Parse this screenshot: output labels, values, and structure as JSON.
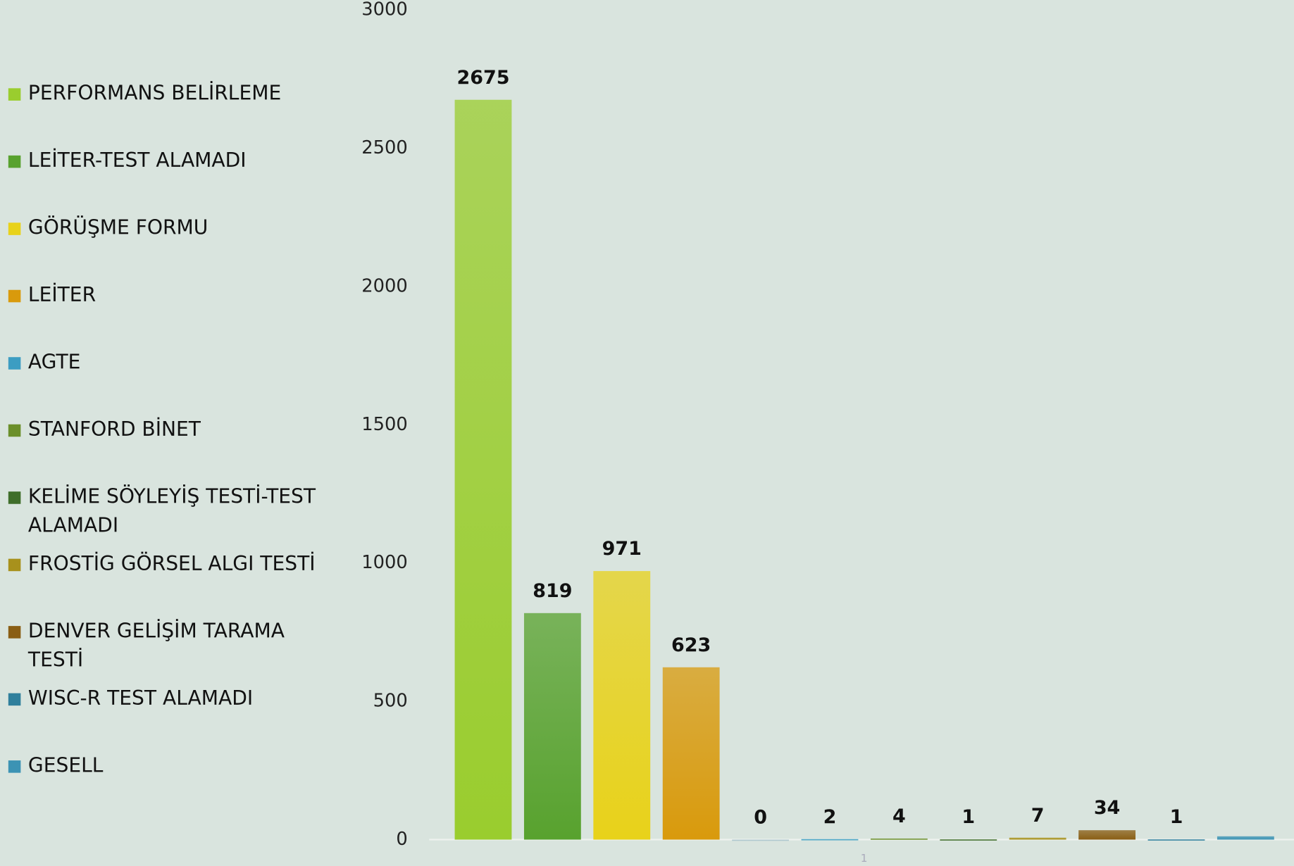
{
  "chart_data": {
    "type": "bar",
    "categories": [
      "1"
    ],
    "ylim": [
      0,
      3000
    ],
    "yticks": [
      0,
      500,
      1000,
      1500,
      2000,
      2500,
      3000
    ],
    "legend": "left",
    "data_labels": true,
    "series": [
      {
        "name": "PERFORMANS BELİRLEME",
        "color": "#9acd2e",
        "values": [
          2675
        ]
      },
      {
        "name": "LEİTER-TEST ALAMADI",
        "color": "#58a22e",
        "values": [
          819
        ]
      },
      {
        "name": "GÖRÜŞME FORMU",
        "color": "#e8d21a",
        "values": [
          971
        ]
      },
      {
        "name": "LEİTER",
        "color": "#d99a0c",
        "values": [
          623
        ]
      },
      {
        "color": "#a9c4cc",
        "values": [
          0
        ]
      },
      {
        "name": "AGTE",
        "color": "#3c9dc2",
        "values": [
          2
        ]
      },
      {
        "name": "STANFORD BİNET",
        "color": "#6b8f2a",
        "values": [
          4
        ]
      },
      {
        "name": "KELİME SÖYLEYİŞ TESTİ-TEST ALAMADI",
        "color": "#3f6e2a",
        "values": [
          1
        ]
      },
      {
        "name": "FROSTİG GÖRSEL ALGI TESTİ",
        "color": "#a8911c",
        "values": [
          7
        ]
      },
      {
        "name": "DENVER GELİŞİM TARAMA TESTİ",
        "color": "#8a5e14",
        "values": [
          34
        ]
      },
      {
        "name": "WISC-R TEST ALAMADI",
        "color": "#2f7f9c",
        "values": [
          1
        ]
      },
      {
        "name": "GESELL",
        "color": "#3c93b4",
        "values": [
          12
        ],
        "data_labels": false
      }
    ]
  }
}
